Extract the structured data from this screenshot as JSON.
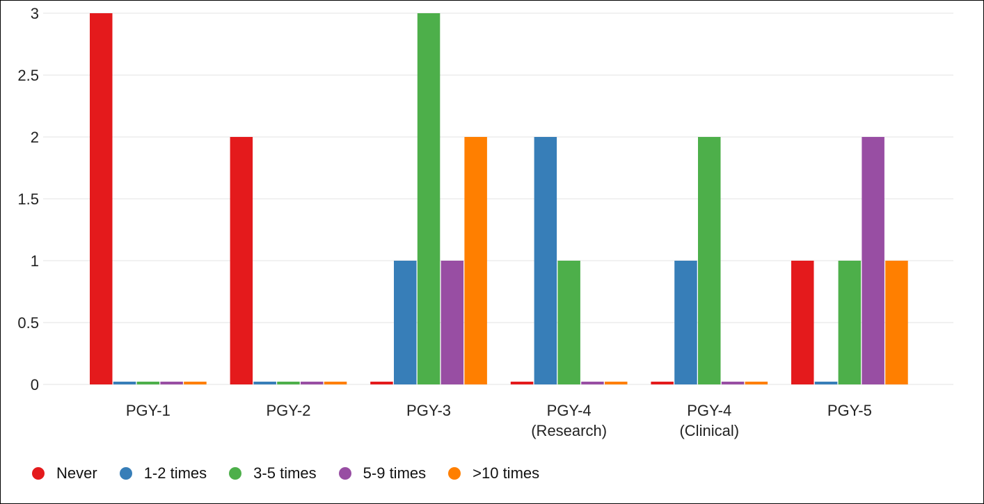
{
  "chart_data": {
    "type": "bar",
    "title": "",
    "xlabel": "",
    "ylabel": "",
    "ylim": [
      0,
      3
    ],
    "yticks": [
      "0",
      "0.5",
      "1",
      "1.5",
      "2",
      "2.5",
      "3"
    ],
    "ytick_values": [
      0,
      0.5,
      1,
      1.5,
      2,
      2.5,
      3
    ],
    "categories": [
      [
        "PGY-1"
      ],
      [
        "PGY-2"
      ],
      [
        "PGY-3"
      ],
      [
        "PGY-4",
        "(Research)"
      ],
      [
        "PGY-4",
        "(Clinical)"
      ],
      [
        "PGY-5"
      ]
    ],
    "series": [
      {
        "name": "Never",
        "color": "#e41a1c",
        "values": [
          3,
          2,
          0,
          0,
          0,
          1
        ]
      },
      {
        "name": "1-2 times",
        "color": "#377eb8",
        "values": [
          0,
          0,
          1,
          2,
          1,
          0
        ]
      },
      {
        "name": "3-5 times",
        "color": "#4daf4a",
        "values": [
          0,
          0,
          3,
          1,
          2,
          1
        ]
      },
      {
        "name": "5-9 times",
        "color": "#984ea3",
        "values": [
          0,
          0,
          1,
          0,
          0,
          2
        ]
      },
      {
        "name": ">10 times",
        "color": "#ff7f00",
        "values": [
          0,
          0,
          2,
          0,
          0,
          1
        ]
      }
    ],
    "grid": true,
    "legend_position": "bottom-left"
  }
}
